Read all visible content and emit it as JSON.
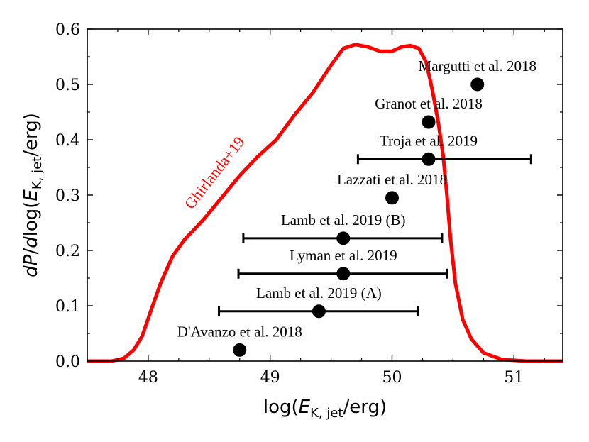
{
  "chart_data": {
    "type": "scatter",
    "xlabel_parts": {
      "pre": "log(",
      "var": "E",
      "sub": "K, jet",
      "post": "/erg)"
    },
    "ylabel_parts": {
      "d1": "dP",
      "mid": "/",
      "d2": "d",
      "log": "log(",
      "var": "E",
      "sub": "K, jet",
      "post": "/erg)"
    },
    "xlim": [
      47.5,
      51.4
    ],
    "ylim": [
      0,
      0.6
    ],
    "xticks": [
      48,
      49,
      50,
      51
    ],
    "yticks": [
      0.0,
      0.1,
      0.2,
      0.3,
      0.4,
      0.5,
      0.6
    ],
    "minor_xticks": [
      47.5,
      47.75,
      48.25,
      48.5,
      48.75,
      49.25,
      49.5,
      49.75,
      50.25,
      50.5,
      50.75,
      51.25
    ],
    "minor_yticks": [
      0.05,
      0.15,
      0.25,
      0.35,
      0.45,
      0.55
    ],
    "points": [
      {
        "label": "D'Avanzo et al. 2018",
        "x": 48.75,
        "y": 0.02,
        "xerr": null
      },
      {
        "label": "Lamb et al. 2019 (A)",
        "x": 49.4,
        "y": 0.09,
        "xerr": [
          48.58,
          50.21
        ]
      },
      {
        "label": "Lyman et al. 2019",
        "x": 49.6,
        "y": 0.158,
        "xerr": [
          48.74,
          50.45
        ]
      },
      {
        "label": "Lamb et al. 2019 (B)",
        "x": 49.6,
        "y": 0.222,
        "xerr": [
          48.78,
          50.41
        ]
      },
      {
        "label": "Lazzati et al. 2018",
        "x": 50.0,
        "y": 0.295,
        "xerr": null
      },
      {
        "label": "Troja et al. 2019",
        "x": 50.3,
        "y": 0.365,
        "xerr": [
          49.72,
          51.14
        ]
      },
      {
        "label": "Granot et al. 2018",
        "x": 50.3,
        "y": 0.432,
        "xerr": null
      },
      {
        "label": "Margutti et al. 2018",
        "x": 50.7,
        "y": 0.5,
        "xerr": null
      }
    ],
    "curve": {
      "name": "Ghirlanda+19",
      "color": "#ff0000",
      "x": [
        47.5,
        47.7,
        47.8,
        47.88,
        47.95,
        48.02,
        48.1,
        48.2,
        48.3,
        48.45,
        48.6,
        48.75,
        48.9,
        49.05,
        49.2,
        49.35,
        49.5,
        49.6,
        49.7,
        49.8,
        49.9,
        50.0,
        50.08,
        50.15,
        50.22,
        50.28,
        50.33,
        50.38,
        50.42,
        50.45,
        50.48,
        50.52,
        50.58,
        50.65,
        50.75,
        50.9,
        51.1,
        51.4
      ],
      "y": [
        0.0,
        0.0,
        0.005,
        0.02,
        0.045,
        0.09,
        0.14,
        0.19,
        0.22,
        0.255,
        0.295,
        0.335,
        0.37,
        0.4,
        0.445,
        0.485,
        0.535,
        0.565,
        0.572,
        0.568,
        0.56,
        0.56,
        0.568,
        0.57,
        0.565,
        0.54,
        0.49,
        0.43,
        0.37,
        0.3,
        0.22,
        0.14,
        0.075,
        0.04,
        0.015,
        0.003,
        0.0,
        0.0
      ]
    },
    "label_text": {
      "curve": "Ghirlanda+19"
    }
  }
}
